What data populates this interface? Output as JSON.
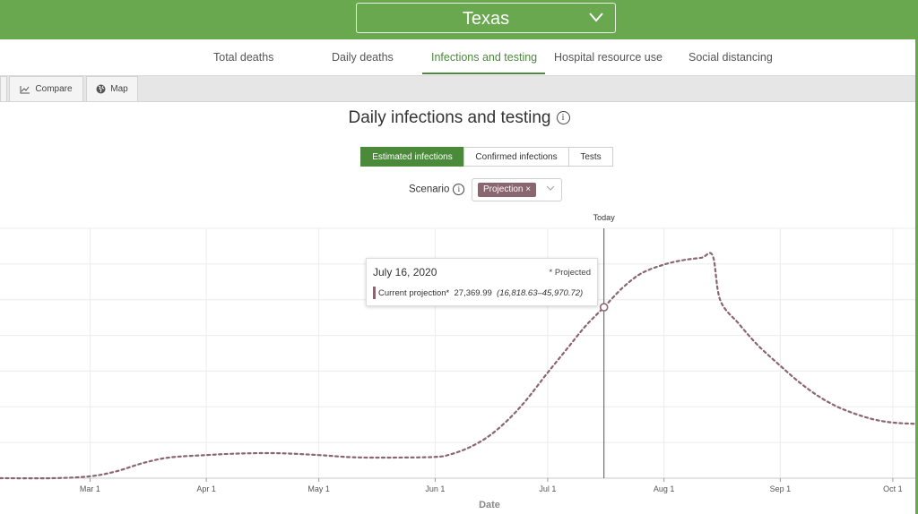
{
  "header": {
    "state": "Texas"
  },
  "nav": {
    "tabs": [
      {
        "label": "Total deaths"
      },
      {
        "label": "Daily deaths"
      },
      {
        "label": "Infections and testing",
        "active": true
      },
      {
        "label": "Hospital resource use"
      },
      {
        "label": "Social distancing"
      }
    ]
  },
  "toolbar": {
    "compare_label": "Compare",
    "map_label": "Map"
  },
  "page": {
    "title": "Daily infections and testing"
  },
  "metric_tabs": [
    {
      "label": "Estimated infections",
      "active": true
    },
    {
      "label": "Confirmed infections"
    },
    {
      "label": "Tests"
    }
  ],
  "scenario": {
    "label": "Scenario",
    "selected": "Projection",
    "remove_glyph": "×"
  },
  "tooltip": {
    "date": "July 16, 2020",
    "projected_note": "* Projected",
    "series_label": "Current projection*",
    "value": "27,369.99",
    "range": "(16,818.63–45,970.72)"
  },
  "colors": {
    "brand": "#6aa84f",
    "accent": "#4c8a3b",
    "series": "#8a6670"
  },
  "chart_data": {
    "type": "line",
    "xlabel": "Date",
    "today_label": "Today",
    "today_date": "2020-07-16",
    "x_tick_labels": [
      "Mar 1",
      "Apr 1",
      "May 1",
      "Jun 1",
      "Jul 1",
      "Aug 1",
      "Sep 1",
      "Oct 1"
    ],
    "x_tick_dates": [
      "2020-03-01",
      "2020-04-01",
      "2020-05-01",
      "2020-06-01",
      "2020-07-01",
      "2020-08-01",
      "2020-09-01",
      "2020-10-01"
    ],
    "x_range": [
      "2020-02-06",
      "2020-10-07"
    ],
    "y_range": [
      0,
      40000
    ],
    "grid": true,
    "series": [
      {
        "name": "Current projection",
        "style": "dotted",
        "x": [
          "2020-02-06",
          "2020-02-20",
          "2020-03-01",
          "2020-03-08",
          "2020-03-15",
          "2020-03-22",
          "2020-04-01",
          "2020-04-10",
          "2020-04-20",
          "2020-05-01",
          "2020-05-10",
          "2020-05-20",
          "2020-06-01",
          "2020-06-05",
          "2020-06-10",
          "2020-06-15",
          "2020-06-20",
          "2020-06-25",
          "2020-07-01",
          "2020-07-06",
          "2020-07-11",
          "2020-07-16",
          "2020-07-21",
          "2020-07-26",
          "2020-08-01",
          "2020-08-06",
          "2020-08-11",
          "2020-08-14",
          "2020-08-16",
          "2020-08-21",
          "2020-08-26",
          "2020-09-01",
          "2020-09-06",
          "2020-09-11",
          "2020-09-16",
          "2020-09-21",
          "2020-09-26",
          "2020-10-01",
          "2020-10-07"
        ],
        "y": [
          0,
          0,
          300,
          1100,
          2400,
          3300,
          3700,
          3950,
          4000,
          3700,
          3350,
          3300,
          3400,
          3800,
          4900,
          6600,
          9100,
          12300,
          16900,
          20600,
          24300,
          27370,
          30500,
          32800,
          34200,
          34900,
          35300,
          35600,
          28500,
          24700,
          21300,
          18000,
          15400,
          13200,
          11500,
          10300,
          9400,
          8900,
          8700
        ]
      }
    ]
  }
}
